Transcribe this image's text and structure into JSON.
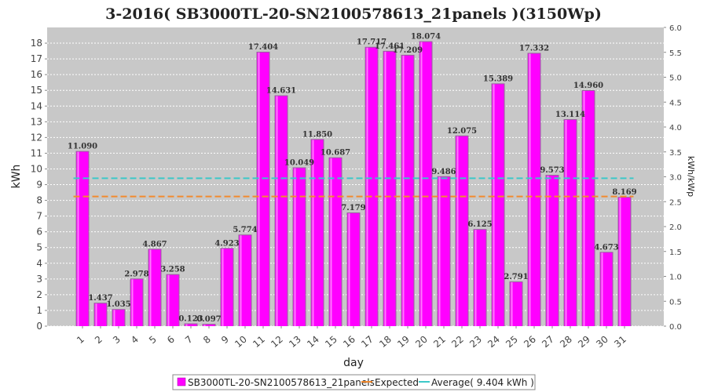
{
  "chart_data": {
    "type": "bar",
    "title": "3-2016( SB3000TL-20-SN2100578613_21panels )(3150Wp)",
    "xlabel": "day",
    "ylabel": "kWh",
    "ylabel_right": "kWh/kWp",
    "ylim": [
      0,
      19
    ],
    "ylim_right": [
      0,
      6.0
    ],
    "y_ticks": [
      "0",
      "1",
      "2",
      "3",
      "4",
      "5",
      "6",
      "7",
      "8",
      "9",
      "10",
      "11",
      "12",
      "13",
      "14",
      "15",
      "16",
      "17",
      "18"
    ],
    "y_ticks_right": [
      "0.0",
      "0.5",
      "1.0",
      "1.5",
      "2.0",
      "2.5",
      "3.0",
      "3.5",
      "4.0",
      "4.5",
      "5.0",
      "5.5",
      "6.0"
    ],
    "grid": true,
    "legend_position": "bottom",
    "categories": [
      "1",
      "2",
      "3",
      "4",
      "5",
      "6",
      "7",
      "8",
      "9",
      "10",
      "11",
      "12",
      "13",
      "14",
      "15",
      "16",
      "17",
      "18",
      "19",
      "20",
      "21",
      "22",
      "23",
      "24",
      "25",
      "26",
      "27",
      "28",
      "29",
      "30",
      "31"
    ],
    "series": [
      {
        "name": "SB3000TL-20-SN2100578613_21panels",
        "color": "#ff00ff",
        "values": [
          11.09,
          1.437,
          1.035,
          2.978,
          4.867,
          3.258,
          0.123,
          0.097,
          4.923,
          5.774,
          17.404,
          14.631,
          10.049,
          11.85,
          10.687,
          7.179,
          17.717,
          17.461,
          17.209,
          18.074,
          9.486,
          12.075,
          6.125,
          15.389,
          2.791,
          17.332,
          9.573,
          13.114,
          14.96,
          4.673,
          8.169
        ],
        "labels": [
          "11.090",
          "1.437",
          "1.035",
          "2.978",
          "4.867",
          "3.258",
          "0.123",
          "0.097",
          "4.923",
          "5.774",
          "17.404",
          "14.631",
          "10.049",
          "11.850",
          "10.687",
          "7.179",
          "17.717",
          "17.461",
          "17.209",
          "18.074",
          "9.486",
          "12.075",
          "6.125",
          "15.389",
          "2.791",
          "17.332",
          "9.573",
          "13.114",
          "14.960",
          "4.673",
          "8.169"
        ]
      }
    ],
    "reference_lines": [
      {
        "name": "Expected",
        "color": "#f28a2e",
        "value": 8.25
      },
      {
        "name": "Average( 9.404 kWh )",
        "color": "#3cc8c8",
        "value": 9.404
      }
    ]
  }
}
